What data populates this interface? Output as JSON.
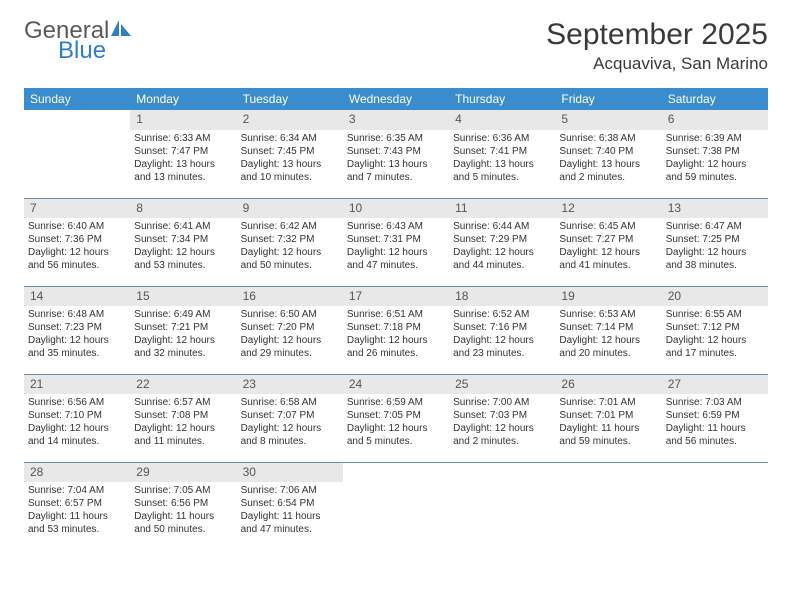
{
  "brand": {
    "name_top": "General",
    "name_bottom": "Blue"
  },
  "title": "September 2025",
  "location": "Acquaviva, San Marino",
  "weekdays": [
    "Sunday",
    "Monday",
    "Tuesday",
    "Wednesday",
    "Thursday",
    "Friday",
    "Saturday"
  ],
  "colors": {
    "header_bg": "#3b8ccc",
    "header_text": "#ffffff",
    "daynum_bg": "#e8e8e8",
    "border": "#6b8fb0",
    "brand_blue": "#2f7fc2"
  },
  "start_weekday": 1,
  "days": [
    {
      "n": 1,
      "sunrise": "6:33 AM",
      "sunset": "7:47 PM",
      "daylight": "13 hours and 13 minutes."
    },
    {
      "n": 2,
      "sunrise": "6:34 AM",
      "sunset": "7:45 PM",
      "daylight": "13 hours and 10 minutes."
    },
    {
      "n": 3,
      "sunrise": "6:35 AM",
      "sunset": "7:43 PM",
      "daylight": "13 hours and 7 minutes."
    },
    {
      "n": 4,
      "sunrise": "6:36 AM",
      "sunset": "7:41 PM",
      "daylight": "13 hours and 5 minutes."
    },
    {
      "n": 5,
      "sunrise": "6:38 AM",
      "sunset": "7:40 PM",
      "daylight": "13 hours and 2 minutes."
    },
    {
      "n": 6,
      "sunrise": "6:39 AM",
      "sunset": "7:38 PM",
      "daylight": "12 hours and 59 minutes."
    },
    {
      "n": 7,
      "sunrise": "6:40 AM",
      "sunset": "7:36 PM",
      "daylight": "12 hours and 56 minutes."
    },
    {
      "n": 8,
      "sunrise": "6:41 AM",
      "sunset": "7:34 PM",
      "daylight": "12 hours and 53 minutes."
    },
    {
      "n": 9,
      "sunrise": "6:42 AM",
      "sunset": "7:32 PM",
      "daylight": "12 hours and 50 minutes."
    },
    {
      "n": 10,
      "sunrise": "6:43 AM",
      "sunset": "7:31 PM",
      "daylight": "12 hours and 47 minutes."
    },
    {
      "n": 11,
      "sunrise": "6:44 AM",
      "sunset": "7:29 PM",
      "daylight": "12 hours and 44 minutes."
    },
    {
      "n": 12,
      "sunrise": "6:45 AM",
      "sunset": "7:27 PM",
      "daylight": "12 hours and 41 minutes."
    },
    {
      "n": 13,
      "sunrise": "6:47 AM",
      "sunset": "7:25 PM",
      "daylight": "12 hours and 38 minutes."
    },
    {
      "n": 14,
      "sunrise": "6:48 AM",
      "sunset": "7:23 PM",
      "daylight": "12 hours and 35 minutes."
    },
    {
      "n": 15,
      "sunrise": "6:49 AM",
      "sunset": "7:21 PM",
      "daylight": "12 hours and 32 minutes."
    },
    {
      "n": 16,
      "sunrise": "6:50 AM",
      "sunset": "7:20 PM",
      "daylight": "12 hours and 29 minutes."
    },
    {
      "n": 17,
      "sunrise": "6:51 AM",
      "sunset": "7:18 PM",
      "daylight": "12 hours and 26 minutes."
    },
    {
      "n": 18,
      "sunrise": "6:52 AM",
      "sunset": "7:16 PM",
      "daylight": "12 hours and 23 minutes."
    },
    {
      "n": 19,
      "sunrise": "6:53 AM",
      "sunset": "7:14 PM",
      "daylight": "12 hours and 20 minutes."
    },
    {
      "n": 20,
      "sunrise": "6:55 AM",
      "sunset": "7:12 PM",
      "daylight": "12 hours and 17 minutes."
    },
    {
      "n": 21,
      "sunrise": "6:56 AM",
      "sunset": "7:10 PM",
      "daylight": "12 hours and 14 minutes."
    },
    {
      "n": 22,
      "sunrise": "6:57 AM",
      "sunset": "7:08 PM",
      "daylight": "12 hours and 11 minutes."
    },
    {
      "n": 23,
      "sunrise": "6:58 AM",
      "sunset": "7:07 PM",
      "daylight": "12 hours and 8 minutes."
    },
    {
      "n": 24,
      "sunrise": "6:59 AM",
      "sunset": "7:05 PM",
      "daylight": "12 hours and 5 minutes."
    },
    {
      "n": 25,
      "sunrise": "7:00 AM",
      "sunset": "7:03 PM",
      "daylight": "12 hours and 2 minutes."
    },
    {
      "n": 26,
      "sunrise": "7:01 AM",
      "sunset": "7:01 PM",
      "daylight": "11 hours and 59 minutes."
    },
    {
      "n": 27,
      "sunrise": "7:03 AM",
      "sunset": "6:59 PM",
      "daylight": "11 hours and 56 minutes."
    },
    {
      "n": 28,
      "sunrise": "7:04 AM",
      "sunset": "6:57 PM",
      "daylight": "11 hours and 53 minutes."
    },
    {
      "n": 29,
      "sunrise": "7:05 AM",
      "sunset": "6:56 PM",
      "daylight": "11 hours and 50 minutes."
    },
    {
      "n": 30,
      "sunrise": "7:06 AM",
      "sunset": "6:54 PM",
      "daylight": "11 hours and 47 minutes."
    }
  ],
  "labels": {
    "sunrise": "Sunrise:",
    "sunset": "Sunset:",
    "daylight": "Daylight:"
  }
}
